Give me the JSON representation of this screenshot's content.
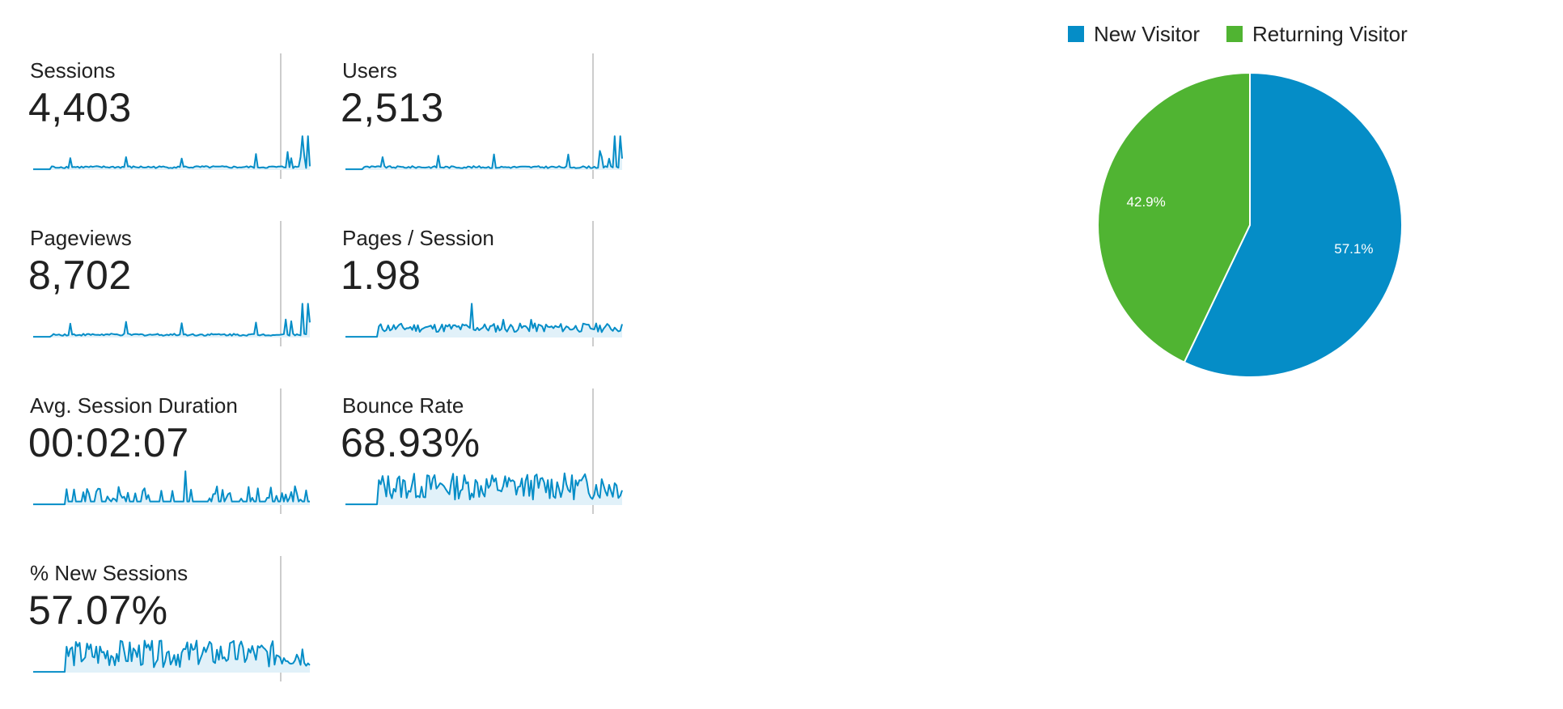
{
  "metrics": [
    {
      "label": "Sessions",
      "value": "4,403",
      "trend": "spiky"
    },
    {
      "label": "Users",
      "value": "2,513",
      "trend": "spiky"
    },
    {
      "label": "Pageviews",
      "value": "8,702",
      "trend": "spiky"
    },
    {
      "label": "Pages / Session",
      "value": "1.98",
      "trend": "moderate"
    },
    {
      "label": "Avg. Session Duration",
      "value": "00:02:07",
      "trend": "sparse"
    },
    {
      "label": "Bounce Rate",
      "value": "68.93%",
      "trend": "dense"
    },
    {
      "label": "% New Sessions",
      "value": "57.07%",
      "trend": "dense"
    }
  ],
  "colors": {
    "sparkline": "#058dc7",
    "sparkline_fill": "#e1f1f9",
    "new_visitor": "#058dc7",
    "returning_visitor": "#50b432",
    "divider": "#cccccc"
  },
  "chart_data": {
    "type": "pie",
    "title": "",
    "slices": [
      {
        "name": "New Visitor",
        "value": 57.1,
        "label": "57.1%",
        "color": "#058dc7"
      },
      {
        "name": "Returning Visitor",
        "value": 42.9,
        "label": "42.9%",
        "color": "#50b432"
      }
    ],
    "legend_position": "top"
  }
}
